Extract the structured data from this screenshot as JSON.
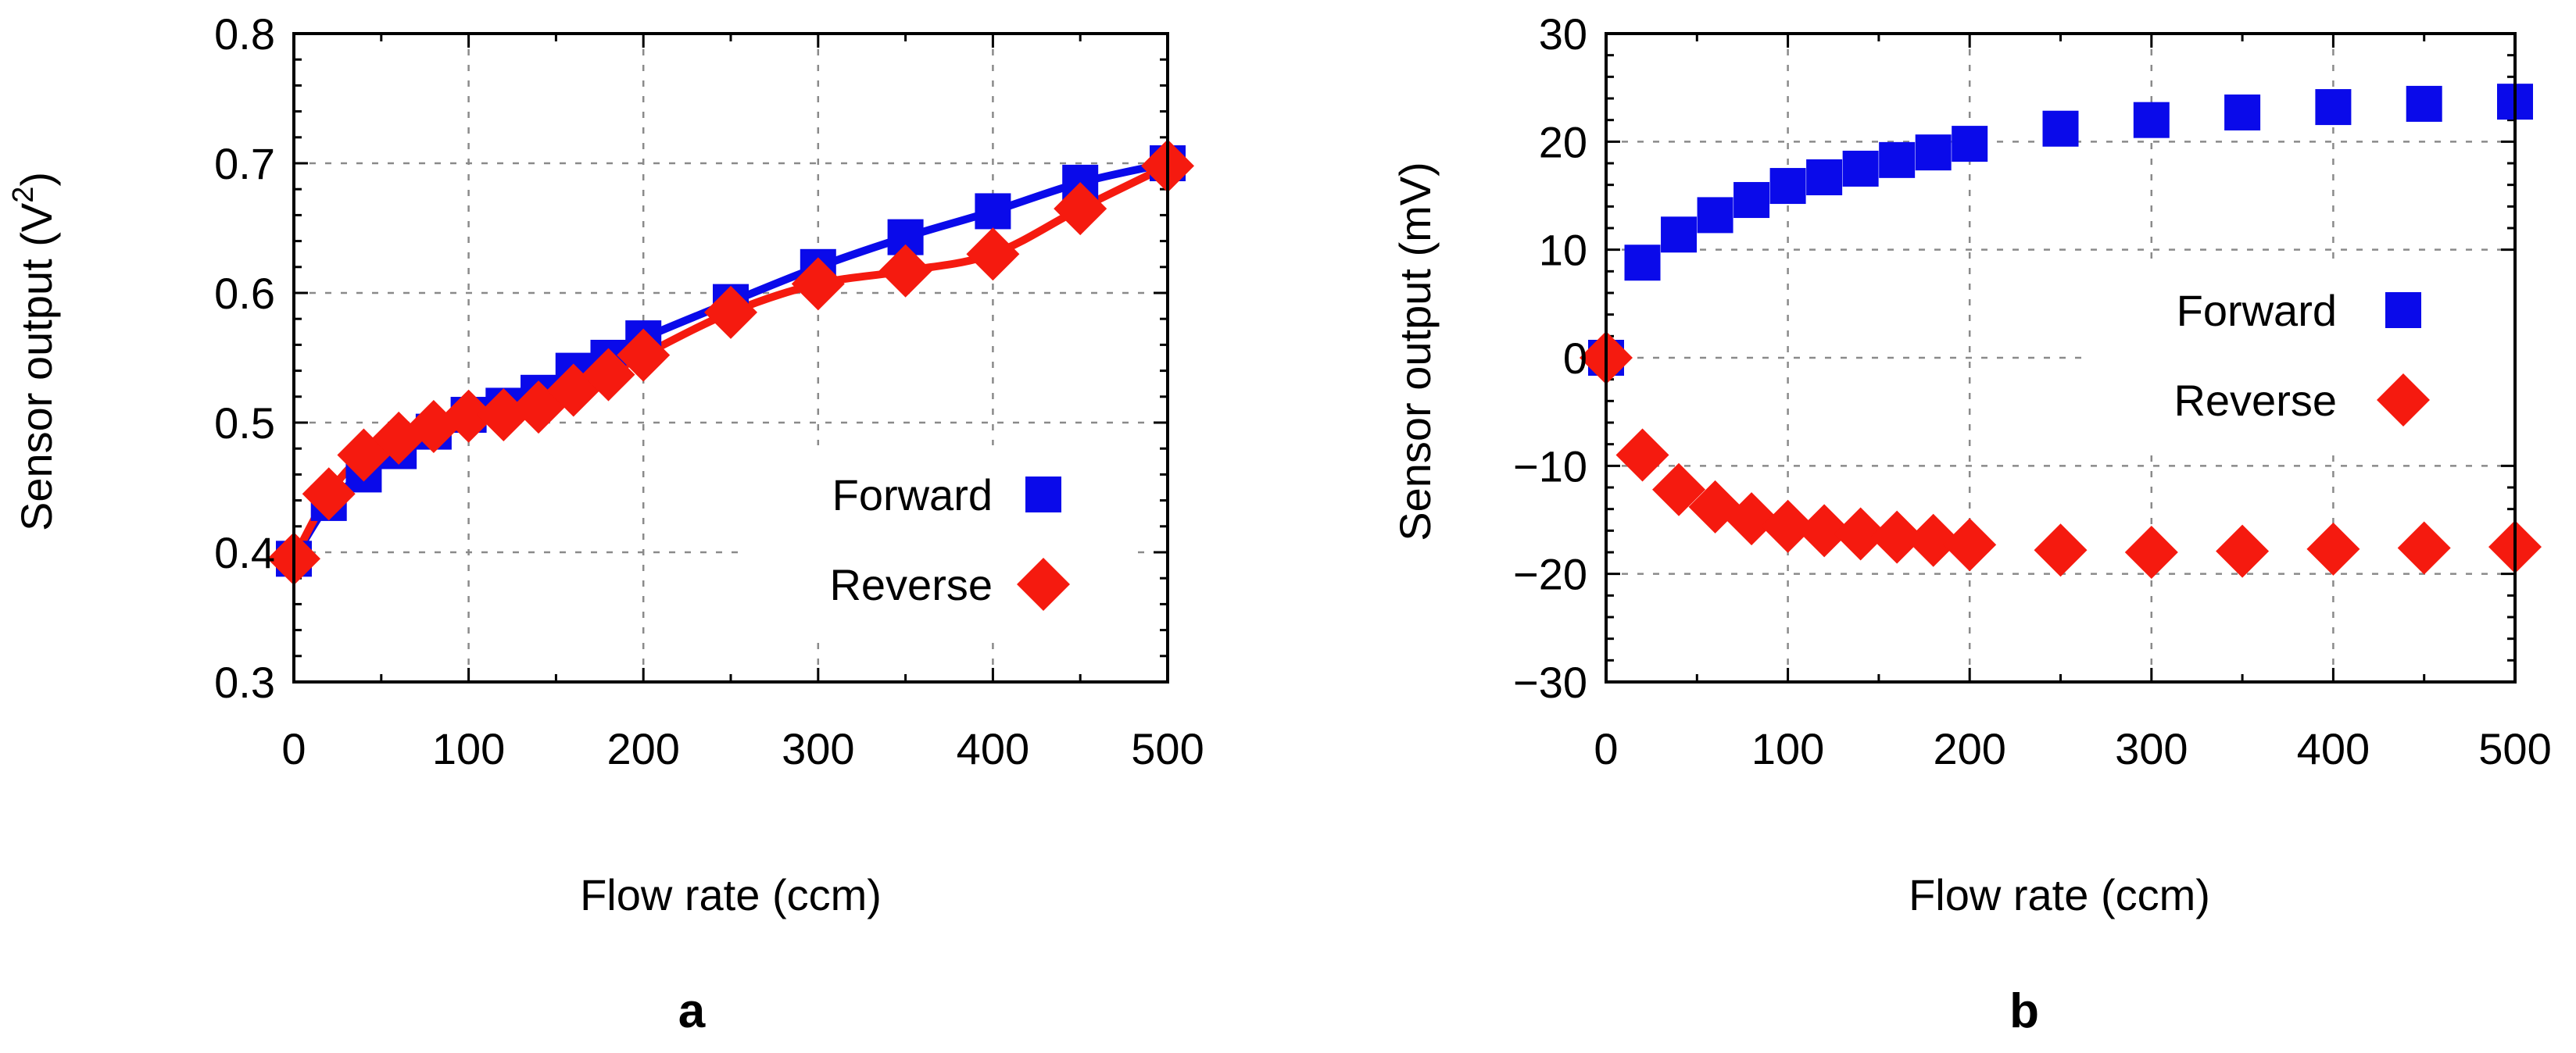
{
  "chart_data": [
    {
      "type": "line",
      "panel_label": "a",
      "xlabel": "Flow rate (ccm)",
      "ylabel_main": "Sensor output (V",
      "ylabel_sup": "2",
      "ylabel_end": ")",
      "xlim": [
        0,
        500
      ],
      "ylim": [
        0.3,
        0.8
      ],
      "xticks": [
        0,
        100,
        200,
        300,
        400,
        500
      ],
      "xtick_labels": [
        "0",
        "100",
        "200",
        "300",
        "400",
        "500"
      ],
      "yticks": [
        0.3,
        0.4,
        0.5,
        0.6,
        0.7,
        0.8
      ],
      "ytick_labels": [
        "0.3",
        "0.4",
        "0.5",
        "0.6",
        "0.7",
        "0.8"
      ],
      "grid": true,
      "legend_position": "bottom-right",
      "series": [
        {
          "name": "Forward",
          "marker": "square",
          "color": "#0a0aea",
          "x": [
            0,
            20,
            40,
            60,
            80,
            100,
            120,
            140,
            160,
            180,
            200,
            250,
            300,
            350,
            400,
            450,
            500
          ],
          "y": [
            0.395,
            0.438,
            0.46,
            0.478,
            0.493,
            0.506,
            0.513,
            0.523,
            0.54,
            0.55,
            0.565,
            0.593,
            0.62,
            0.643,
            0.663,
            0.685,
            0.7
          ],
          "fit_curve": true
        },
        {
          "name": "Reverse",
          "marker": "diamond",
          "color": "#f51a0f",
          "x": [
            0,
            20,
            40,
            60,
            80,
            100,
            120,
            140,
            160,
            180,
            200,
            250,
            300,
            350,
            400,
            450,
            500
          ],
          "y": [
            0.395,
            0.445,
            0.475,
            0.488,
            0.497,
            0.505,
            0.506,
            0.512,
            0.525,
            0.537,
            0.552,
            0.585,
            0.607,
            0.617,
            0.63,
            0.665,
            0.698
          ],
          "fit_curve": true
        }
      ]
    },
    {
      "type": "scatter",
      "panel_label": "b",
      "xlabel": "Flow rate (ccm)",
      "ylabel": "Sensor output (mV)",
      "xlim": [
        0,
        500
      ],
      "ylim": [
        -30,
        30
      ],
      "xticks": [
        0,
        100,
        200,
        300,
        400,
        500
      ],
      "xtick_labels": [
        "0",
        "100",
        "200",
        "300",
        "400",
        "500"
      ],
      "yticks": [
        -30,
        -20,
        -10,
        0,
        10,
        20,
        30
      ],
      "ytick_labels": [
        "−30",
        "−20",
        "−10",
        "0",
        "10",
        "20",
        "30"
      ],
      "grid": true,
      "legend_position": "middle-right",
      "series": [
        {
          "name": "Forward",
          "marker": "square",
          "color": "#0a0aea",
          "x": [
            0,
            20,
            40,
            60,
            80,
            100,
            120,
            140,
            160,
            180,
            200,
            250,
            300,
            350,
            400,
            450,
            500
          ],
          "y": [
            0,
            8.8,
            11.4,
            13.2,
            14.6,
            15.9,
            16.7,
            17.5,
            18.3,
            19.0,
            19.8,
            21.2,
            22.0,
            22.7,
            23.2,
            23.5,
            23.7
          ]
        },
        {
          "name": "Reverse",
          "marker": "diamond",
          "color": "#f51a0f",
          "x": [
            0,
            20,
            40,
            60,
            80,
            100,
            120,
            140,
            160,
            180,
            200,
            250,
            300,
            350,
            400,
            450,
            500
          ],
          "y": [
            0,
            -9.0,
            -12.2,
            -13.8,
            -14.9,
            -15.6,
            -16.0,
            -16.3,
            -16.6,
            -16.9,
            -17.3,
            -17.8,
            -18.0,
            -17.9,
            -17.7,
            -17.6,
            -17.5
          ]
        }
      ]
    }
  ]
}
